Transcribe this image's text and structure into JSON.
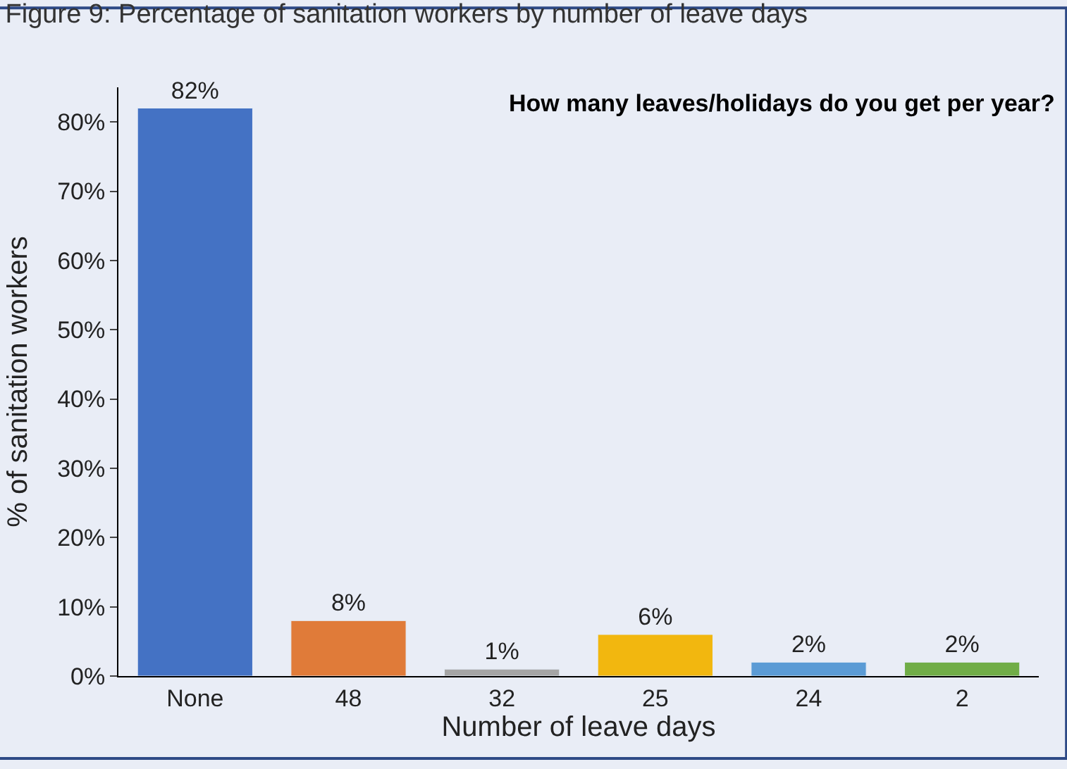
{
  "chart_data": {
    "type": "bar",
    "title": "Figure 9: Percentage of sanitation workers by number of leave days",
    "xlabel": "Number of leave days",
    "ylabel": "% of sanitation workers",
    "annotations": [
      "How many leaves/holidays do you get per year?"
    ],
    "categories": [
      "None",
      "48",
      "32",
      "25",
      "24",
      "2"
    ],
    "values": [
      82,
      8,
      1,
      6,
      2,
      2
    ],
    "value_labels": [
      "82%",
      "8%",
      "1%",
      "6%",
      "2%",
      "2%"
    ],
    "colors": [
      "#4472c4",
      "#e07b39",
      "#a5a5a5",
      "#f2b70f",
      "#5b9bd5",
      "#70ad47"
    ],
    "ylim": [
      0,
      85
    ],
    "yticks": [
      {
        "value": 0,
        "label": "0%"
      },
      {
        "value": 10,
        "label": "10%"
      },
      {
        "value": 20,
        "label": "20%"
      },
      {
        "value": 30,
        "label": "30%"
      },
      {
        "value": 40,
        "label": "40%"
      },
      {
        "value": 50,
        "label": "50%"
      },
      {
        "value": 60,
        "label": "60%"
      },
      {
        "value": 70,
        "label": "70%"
      },
      {
        "value": 80,
        "label": "80%"
      }
    ],
    "grid": false,
    "legend": false
  }
}
